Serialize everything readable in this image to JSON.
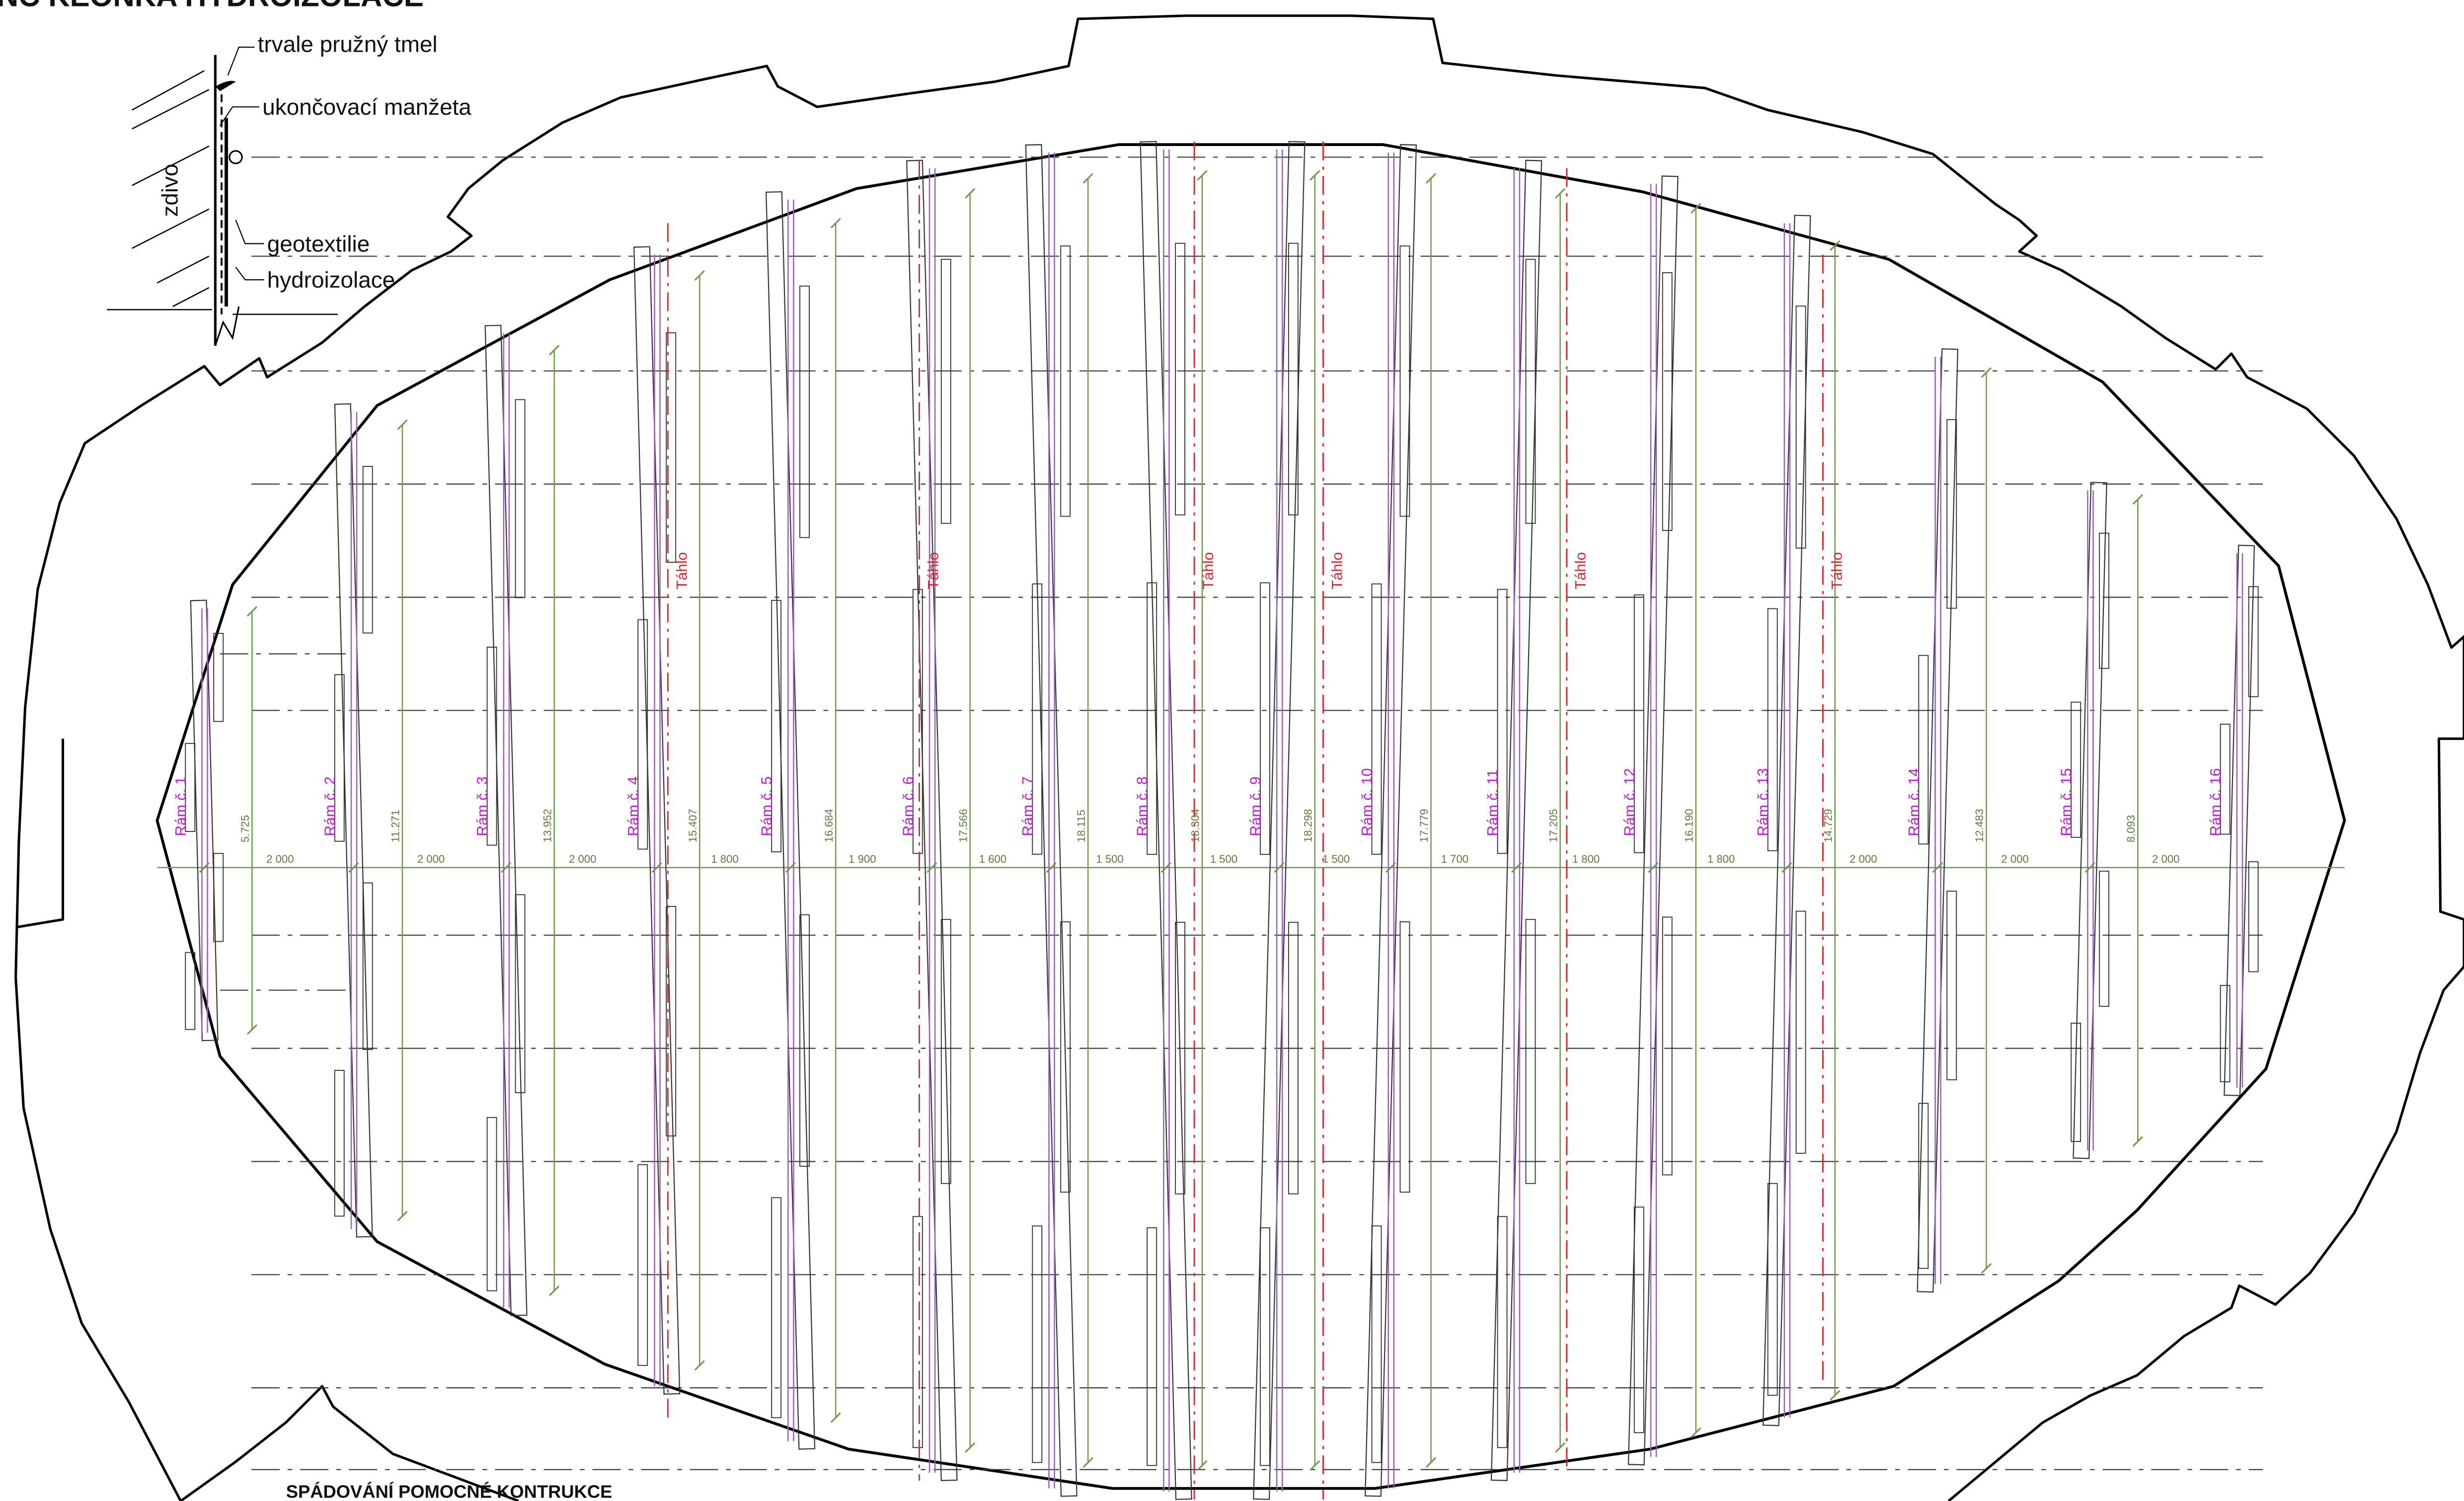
{
  "header": {
    "top_title": "NC KEONKA HYDROIZOLACE"
  },
  "detail": {
    "labels": [
      "trvale pružný tmel",
      "ukončovací manžeta",
      "zdivo",
      "geotextilie",
      "hydroizolace"
    ]
  },
  "bottom_title": "SPÁDOVÁNÍ POMOCNÉ KONTRUKCE",
  "frames": [
    {
      "label": "Rám č. 1",
      "span": "5.725"
    },
    {
      "label": "Rám č. 2",
      "span": "11.271"
    },
    {
      "label": "Rám č. 3",
      "span": "13.952"
    },
    {
      "label": "Rám č. 4",
      "span": "15.407"
    },
    {
      "label": "Rám č. 5",
      "span": "16.684"
    },
    {
      "label": "Rám č. 6",
      "span": "17.566"
    },
    {
      "label": "Rám č. 7",
      "span": "18.115"
    },
    {
      "label": "Rám č. 8",
      "span": "18.304"
    },
    {
      "label": "Rám č. 9",
      "span": "18.298"
    },
    {
      "label": "Rám č. 10",
      "span": "17.779"
    },
    {
      "label": "Rám č. 11",
      "span": "17.205"
    },
    {
      "label": "Rám č. 12",
      "span": "16.190"
    },
    {
      "label": "Rám č. 13",
      "span": "14.729"
    },
    {
      "label": "Rám č. 14",
      "span": "12.483"
    },
    {
      "label": "Rám č. 15",
      "span": "8.093"
    },
    {
      "label": "Rám č. 16",
      "span": ""
    }
  ],
  "spacings": [
    "2 000",
    "2 000",
    "2 000",
    "1 800",
    "1 900",
    "1 600",
    "1 500",
    "1 500",
    "1 500",
    "1 700",
    "1 800",
    "1 800",
    "2 000",
    "2 000",
    "2 000"
  ],
  "tahlo_label": "Táhlo",
  "tahlo_count": 6
}
